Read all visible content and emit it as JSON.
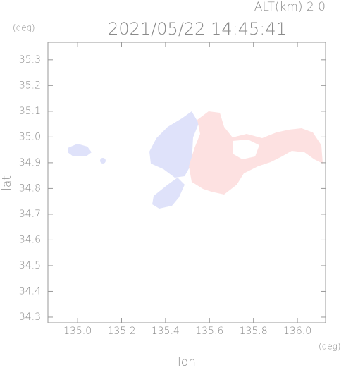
{
  "chart_data": {
    "type": "map",
    "title": "2021/05/22 14:45:41",
    "subtitle": "ALT(km) 2.0",
    "y_unit": "(deg)",
    "x_unit": "(deg)",
    "x_label": "lon",
    "y_label": "lat",
    "xlim": [
      134.865,
      136.128
    ],
    "ylim": [
      34.278,
      35.368
    ],
    "xticks": [
      {
        "value": 135.0,
        "label": "135.0"
      },
      135.2,
      135.4,
      135.6,
      135.8,
      {
        "value": 136.0,
        "label": "136.0"
      }
    ],
    "yticks": [
      35.3,
      35.2,
      35.1,
      {
        "value": 35.0,
        "label": "35.0"
      },
      34.9,
      34.8,
      34.7,
      34.6,
      34.5,
      34.4,
      34.3
    ]
  }
}
